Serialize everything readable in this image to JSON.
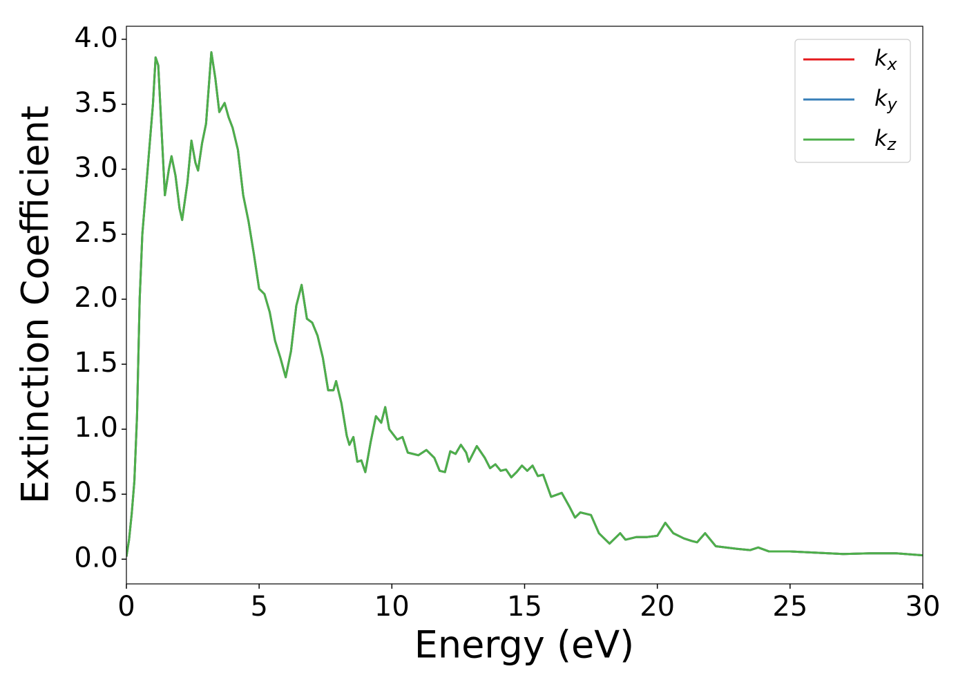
{
  "chart_data": {
    "type": "line",
    "xlabel": "Energy (eV)",
    "ylabel": "Extinction Coefficient",
    "xlim": [
      0,
      30
    ],
    "ylim": [
      -0.19,
      4.1
    ],
    "xticks": [
      0,
      5,
      10,
      15,
      20,
      25,
      30
    ],
    "yticks": [
      {
        "value": 0,
        "label": "0.0"
      },
      {
        "value": 0.5,
        "label": "0.5"
      },
      {
        "value": 1,
        "label": "1.0"
      },
      {
        "value": 1.5,
        "label": "1.5"
      },
      {
        "value": 2,
        "label": "2.0"
      },
      {
        "value": 2.5,
        "label": "2.5"
      },
      {
        "value": 3,
        "label": "3.0"
      },
      {
        "value": 3.5,
        "label": "3.5"
      },
      {
        "value": 4,
        "label": "4.0"
      }
    ],
    "legend": "upper right",
    "grid": false,
    "x": [
      0,
      0.1,
      0.2,
      0.3,
      0.4,
      0.5,
      0.6,
      0.8,
      1.0,
      1.1,
      1.2,
      1.3,
      1.45,
      1.6,
      1.7,
      1.85,
      2.0,
      2.1,
      2.3,
      2.45,
      2.6,
      2.7,
      2.85,
      3.0,
      3.2,
      3.35,
      3.5,
      3.7,
      3.85,
      4.0,
      4.2,
      4.4,
      4.6,
      4.8,
      5.0,
      5.2,
      5.4,
      5.6,
      5.8,
      6.0,
      6.2,
      6.4,
      6.6,
      6.8,
      7.0,
      7.2,
      7.4,
      7.6,
      7.8,
      7.9,
      8.1,
      8.3,
      8.4,
      8.55,
      8.7,
      8.85,
      9.0,
      9.2,
      9.4,
      9.6,
      9.75,
      9.9,
      10.2,
      10.4,
      10.6,
      11.0,
      11.3,
      11.6,
      11.8,
      12.0,
      12.2,
      12.4,
      12.6,
      12.8,
      12.9,
      13.2,
      13.5,
      13.7,
      13.9,
      14.1,
      14.3,
      14.5,
      14.7,
      14.9,
      15.1,
      15.3,
      15.5,
      15.7,
      16.0,
      16.4,
      16.7,
      16.9,
      17.1,
      17.5,
      17.8,
      18.2,
      18.6,
      18.8,
      19.2,
      19.6,
      20.0,
      20.3,
      20.6,
      21.0,
      21.3,
      21.5,
      21.8,
      22.2,
      23.0,
      23.5,
      23.8,
      24.2,
      25.0,
      26.0,
      27.0,
      28.0,
      29.0,
      30.0
    ],
    "series": [
      {
        "name": "kx",
        "color": "#e41a1c",
        "values": [
          0.02,
          0.15,
          0.35,
          0.6,
          1.1,
          2.0,
          2.5,
          3.0,
          3.5,
          3.86,
          3.8,
          3.4,
          2.8,
          3.0,
          3.1,
          2.95,
          2.7,
          2.61,
          2.9,
          3.22,
          3.05,
          2.99,
          3.2,
          3.35,
          3.9,
          3.7,
          3.44,
          3.51,
          3.4,
          3.32,
          3.15,
          2.8,
          2.6,
          2.35,
          2.08,
          2.04,
          1.9,
          1.68,
          1.55,
          1.4,
          1.6,
          1.95,
          2.11,
          1.85,
          1.82,
          1.72,
          1.55,
          1.3,
          1.3,
          1.37,
          1.2,
          0.95,
          0.88,
          0.94,
          0.75,
          0.76,
          0.67,
          0.9,
          1.1,
          1.05,
          1.17,
          1.0,
          0.92,
          0.94,
          0.82,
          0.8,
          0.84,
          0.78,
          0.68,
          0.67,
          0.83,
          0.81,
          0.88,
          0.82,
          0.75,
          0.87,
          0.78,
          0.7,
          0.73,
          0.68,
          0.69,
          0.63,
          0.67,
          0.72,
          0.68,
          0.72,
          0.64,
          0.65,
          0.48,
          0.51,
          0.4,
          0.32,
          0.36,
          0.34,
          0.2,
          0.12,
          0.2,
          0.15,
          0.17,
          0.17,
          0.18,
          0.28,
          0.2,
          0.16,
          0.14,
          0.13,
          0.2,
          0.1,
          0.08,
          0.07,
          0.09,
          0.06,
          0.06,
          0.05,
          0.04,
          0.045,
          0.045,
          0.03
        ]
      },
      {
        "name": "ky",
        "color": "#377eb8",
        "values": [
          0.02,
          0.15,
          0.35,
          0.6,
          1.1,
          2.0,
          2.5,
          3.0,
          3.5,
          3.86,
          3.8,
          3.4,
          2.8,
          3.0,
          3.1,
          2.95,
          2.7,
          2.61,
          2.9,
          3.22,
          3.05,
          2.99,
          3.2,
          3.35,
          3.9,
          3.7,
          3.44,
          3.51,
          3.4,
          3.32,
          3.15,
          2.8,
          2.6,
          2.35,
          2.08,
          2.04,
          1.9,
          1.68,
          1.55,
          1.4,
          1.6,
          1.95,
          2.11,
          1.85,
          1.82,
          1.72,
          1.55,
          1.3,
          1.3,
          1.37,
          1.2,
          0.95,
          0.88,
          0.94,
          0.75,
          0.76,
          0.67,
          0.9,
          1.1,
          1.05,
          1.17,
          1.0,
          0.92,
          0.94,
          0.82,
          0.8,
          0.84,
          0.78,
          0.68,
          0.67,
          0.83,
          0.81,
          0.88,
          0.82,
          0.75,
          0.87,
          0.78,
          0.7,
          0.73,
          0.68,
          0.69,
          0.63,
          0.67,
          0.72,
          0.68,
          0.72,
          0.64,
          0.65,
          0.48,
          0.51,
          0.4,
          0.32,
          0.36,
          0.34,
          0.2,
          0.12,
          0.2,
          0.15,
          0.17,
          0.17,
          0.18,
          0.28,
          0.2,
          0.16,
          0.14,
          0.13,
          0.2,
          0.1,
          0.08,
          0.07,
          0.09,
          0.06,
          0.06,
          0.05,
          0.04,
          0.045,
          0.045,
          0.03
        ]
      },
      {
        "name": "kz",
        "color": "#4daf4a",
        "values": [
          0.02,
          0.15,
          0.35,
          0.6,
          1.1,
          2.0,
          2.5,
          3.0,
          3.5,
          3.86,
          3.8,
          3.4,
          2.8,
          3.0,
          3.1,
          2.95,
          2.7,
          2.61,
          2.9,
          3.22,
          3.05,
          2.99,
          3.2,
          3.35,
          3.9,
          3.7,
          3.44,
          3.51,
          3.4,
          3.32,
          3.15,
          2.8,
          2.6,
          2.35,
          2.08,
          2.04,
          1.9,
          1.68,
          1.55,
          1.4,
          1.6,
          1.95,
          2.11,
          1.85,
          1.82,
          1.72,
          1.55,
          1.3,
          1.3,
          1.37,
          1.2,
          0.95,
          0.88,
          0.94,
          0.75,
          0.76,
          0.67,
          0.9,
          1.1,
          1.05,
          1.17,
          1.0,
          0.92,
          0.94,
          0.82,
          0.8,
          0.84,
          0.78,
          0.68,
          0.67,
          0.83,
          0.81,
          0.88,
          0.82,
          0.75,
          0.87,
          0.78,
          0.7,
          0.73,
          0.68,
          0.69,
          0.63,
          0.67,
          0.72,
          0.68,
          0.72,
          0.64,
          0.65,
          0.48,
          0.51,
          0.4,
          0.32,
          0.36,
          0.34,
          0.2,
          0.12,
          0.2,
          0.15,
          0.17,
          0.17,
          0.18,
          0.28,
          0.2,
          0.16,
          0.14,
          0.13,
          0.2,
          0.1,
          0.08,
          0.07,
          0.09,
          0.06,
          0.06,
          0.05,
          0.04,
          0.045,
          0.045,
          0.03
        ]
      }
    ]
  }
}
